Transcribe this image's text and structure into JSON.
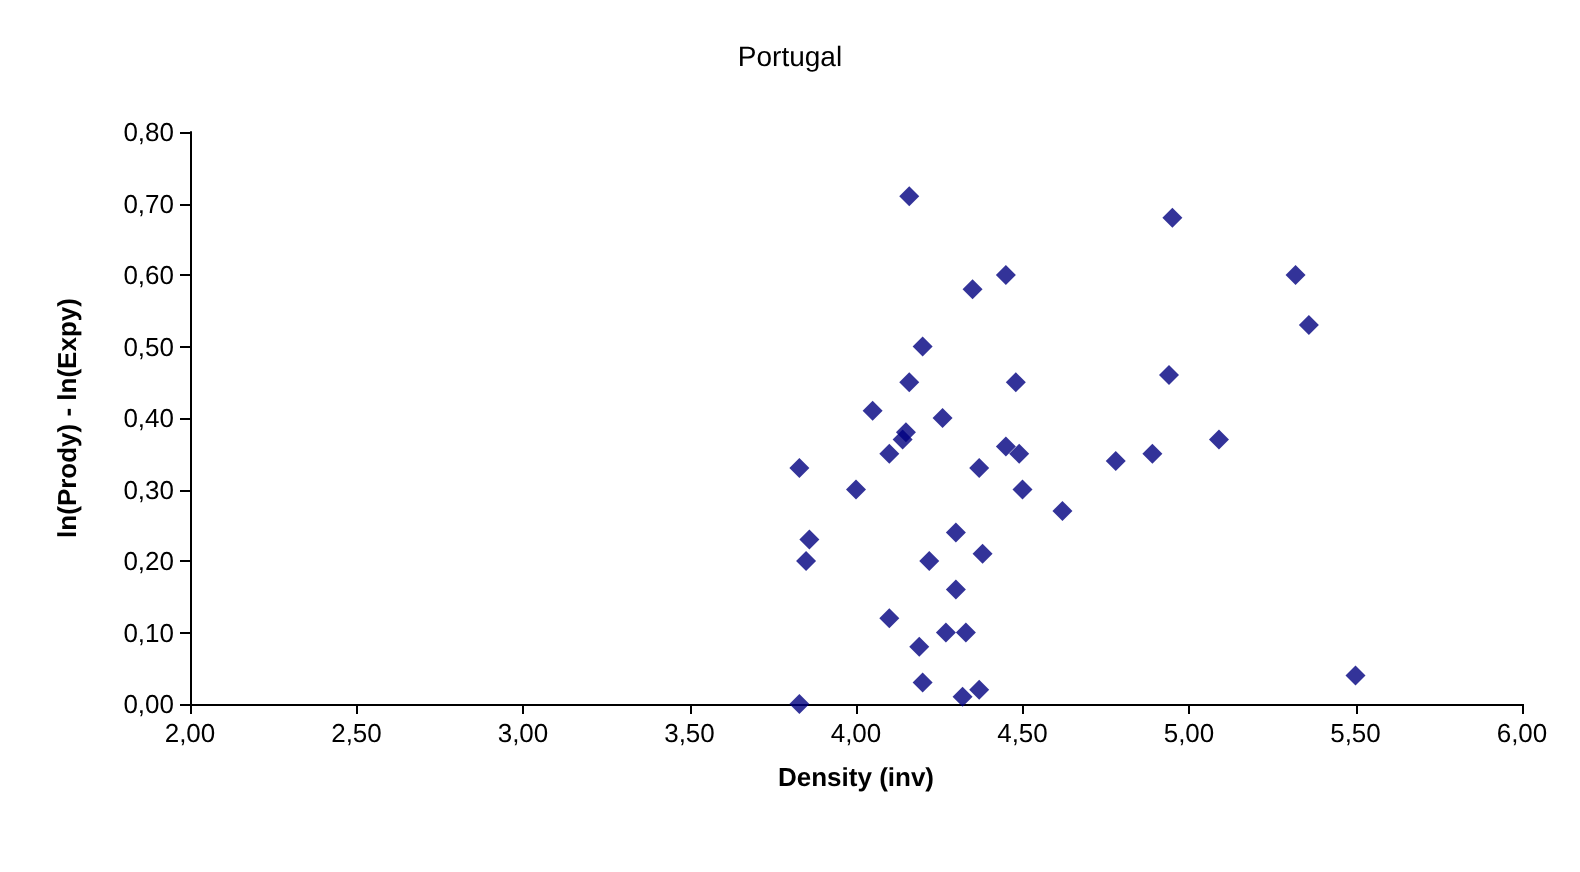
{
  "chart_data": {
    "type": "scatter",
    "title": "Portugal",
    "xlabel": "Density (inv)",
    "ylabel": "ln(Prody) - ln(Expy)",
    "x": [
      3.83,
      3.85,
      3.86,
      3.83,
      4.0,
      4.05,
      4.1,
      4.1,
      4.14,
      4.15,
      4.16,
      4.16,
      4.19,
      4.2,
      4.2,
      4.22,
      4.26,
      4.27,
      4.3,
      4.3,
      4.32,
      4.33,
      4.35,
      4.37,
      4.37,
      4.38,
      4.45,
      4.45,
      4.48,
      4.49,
      4.5,
      4.62,
      4.78,
      4.89,
      4.94,
      4.95,
      5.09,
      5.32,
      5.36,
      5.5
    ],
    "values": [
      0.33,
      0.2,
      0.23,
      0.0,
      0.3,
      0.41,
      0.35,
      0.12,
      0.37,
      0.38,
      0.45,
      0.71,
      0.08,
      0.03,
      0.5,
      0.2,
      0.4,
      0.1,
      0.24,
      0.16,
      0.01,
      0.1,
      0.58,
      0.33,
      0.02,
      0.21,
      0.6,
      0.36,
      0.45,
      0.35,
      0.3,
      0.27,
      0.34,
      0.35,
      0.46,
      0.68,
      0.37,
      0.6,
      0.53,
      0.04
    ],
    "color": "#000080",
    "marker": "diamond",
    "xlim": [
      2.0,
      6.0
    ],
    "ylim": [
      0.0,
      0.8
    ],
    "xticks": [
      {
        "value": 2.0,
        "label": "2,00"
      },
      {
        "value": 2.5,
        "label": "2,50"
      },
      {
        "value": 3.0,
        "label": "3,00"
      },
      {
        "value": 3.5,
        "label": "3,50"
      },
      {
        "value": 4.0,
        "label": "4,00"
      },
      {
        "value": 4.5,
        "label": "4,50"
      },
      {
        "value": 5.0,
        "label": "5,00"
      },
      {
        "value": 5.5,
        "label": "5,50"
      },
      {
        "value": 6.0,
        "label": "6,00"
      }
    ],
    "yticks": [
      {
        "value": 0.0,
        "label": "0,00"
      },
      {
        "value": 0.1,
        "label": "0,10"
      },
      {
        "value": 0.2,
        "label": "0,20"
      },
      {
        "value": 0.3,
        "label": "0,30"
      },
      {
        "value": 0.4,
        "label": "0,40"
      },
      {
        "value": 0.5,
        "label": "0,50"
      },
      {
        "value": 0.6,
        "label": "0,60"
      },
      {
        "value": 0.7,
        "label": "0,70"
      },
      {
        "value": 0.8,
        "label": "0,80"
      }
    ]
  }
}
